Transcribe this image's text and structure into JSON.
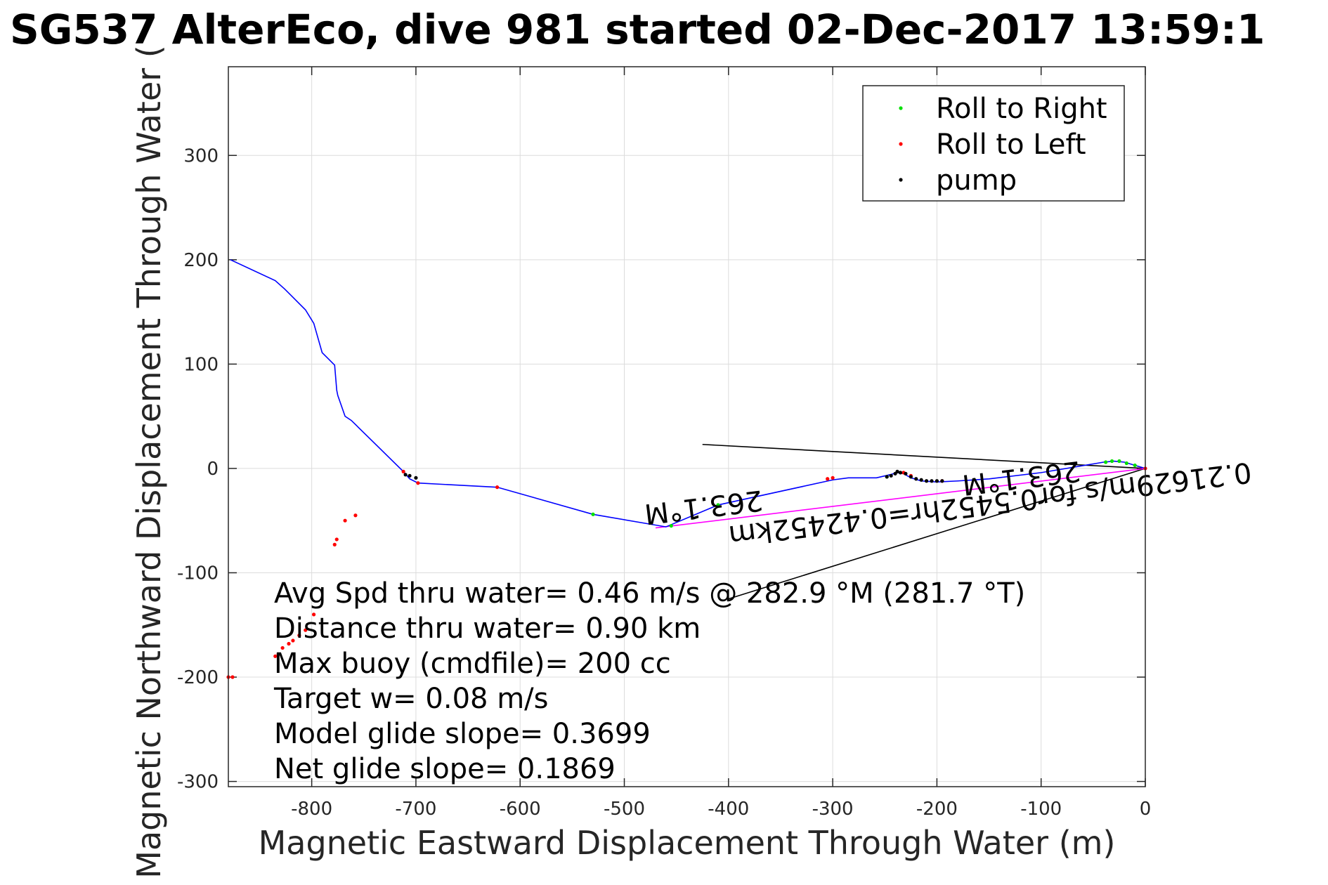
{
  "chart_data": {
    "type": "line",
    "title": "SG537 AlterEco, dive 981 started 02-Dec-2017 13:59:1",
    "xlabel": "Magnetic Eastward Displacement Through Water (m)",
    "ylabel": "Magnetic Northward Displacement Through Water (",
    "xlim": [
      -880,
      0
    ],
    "ylim": [
      -305,
      385
    ],
    "xticks": [
      -800,
      -700,
      -600,
      -500,
      -400,
      -300,
      -200,
      -100,
      0
    ],
    "yticks": [
      -300,
      -200,
      -100,
      0,
      100,
      200,
      300
    ],
    "grid": true,
    "legend": {
      "placement": "top-right",
      "entries": [
        {
          "label": "Roll to Right",
          "color": "#00e000"
        },
        {
          "label": "Roll to Left",
          "color": "#ff0000"
        },
        {
          "label": "pump",
          "color": "#000000"
        }
      ]
    },
    "track": {
      "color": "#0000ff",
      "x": [
        0,
        -10,
        -20,
        -30,
        -40,
        -100,
        -150,
        -180,
        -200,
        -215,
        -225,
        -232,
        -238,
        -245,
        -258,
        -285,
        -300,
        -410,
        -460,
        -530,
        -622,
        -698,
        -706,
        -712,
        -762,
        -768,
        -775,
        -776,
        -778,
        -790,
        -798,
        -806,
        -820,
        -826,
        -835,
        -878
      ],
      "y": [
        0,
        3,
        6,
        7,
        6,
        -4,
        -10,
        -12,
        -13,
        -12,
        -9,
        -5,
        -4,
        -6,
        -9,
        -9,
        -11,
        -35,
        -56,
        -44,
        -18,
        -14,
        -10,
        -3,
        46,
        50,
        70,
        75,
        99,
        111,
        139,
        152,
        166,
        172,
        180,
        200
      ]
    },
    "series": [
      {
        "name": "Roll to Right",
        "color": "#00e000",
        "x": [
          -10,
          -18,
          -25,
          -32,
          -38,
          -248,
          -410,
          -455,
          -530
        ],
        "y": [
          3,
          5,
          7,
          7,
          6,
          -8,
          -35,
          -55,
          -44
        ]
      },
      {
        "name": "Roll to Left",
        "color": "#ff0000",
        "x": [
          0,
          -195,
          -225,
          -232,
          -300,
          -305,
          -622,
          -698,
          -712,
          -758,
          -768,
          -776,
          -778,
          -798,
          -806,
          -812,
          -818,
          -822,
          -828,
          -832,
          -835,
          -876,
          -880
        ],
        "y": [
          0,
          -12,
          -7,
          -4,
          -9,
          -10,
          -18,
          -14,
          -3,
          -45,
          -50,
          -68,
          -73,
          -140,
          -155,
          -160,
          -165,
          -168,
          -172,
          -178,
          -180,
          -200,
          -200
        ]
      },
      {
        "name": "pump",
        "color": "#000000",
        "x": [
          -195,
          -200,
          -205,
          -210,
          -215,
          -220,
          -225,
          -230,
          -235,
          -238,
          -240,
          -244,
          -248,
          -700,
          -706,
          -710
        ],
        "y": [
          -12,
          -12,
          -12,
          -12,
          -11,
          -10,
          -8,
          -5,
          -4,
          -3,
          -5,
          -7,
          -8,
          -9,
          -7,
          -6
        ]
      }
    ],
    "net_track": {
      "color": "#ff00ff",
      "x": [
        0,
        -470
      ],
      "y": [
        0,
        -57
      ]
    },
    "heading_lines": [
      {
        "x": [
          0,
          -425
        ],
        "y": [
          0,
          23
        ]
      },
      {
        "x": [
          0,
          -400
        ],
        "y": [
          0,
          -125
        ]
      }
    ],
    "annotations": [
      {
        "text": "0.21629m/s for0.5452hr=0.42452km",
        "x": -150,
        "y": -25,
        "rotation_deg": 173
      },
      {
        "text": "263.1°M",
        "x": -425,
        "y": -28,
        "rotation_deg": 173
      },
      {
        "text": "263.1°M",
        "x": -120,
        "y": 0,
        "rotation_deg": 173
      }
    ],
    "stats": [
      "Avg Spd thru water=  0.46 m/s @ 282.9 °M (281.7 °T)",
      "Distance thru water=  0.90 km",
      "Max buoy (cmdfile)= 200 cc",
      "Target w= 0.08 m/s",
      "Model glide slope= 0.3699",
      "Net glide slope= 0.1869"
    ]
  }
}
